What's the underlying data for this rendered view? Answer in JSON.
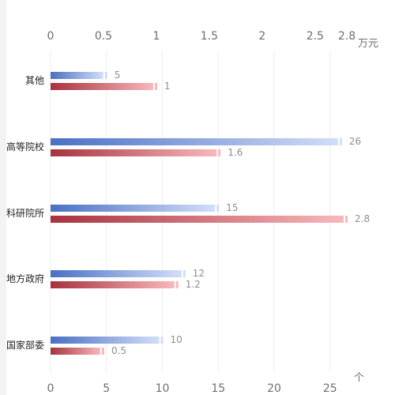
{
  "colors": {
    "count_start": "#4a6fc4",
    "count_end": "#d2def8",
    "amount_start": "#a8323e",
    "amount_end": "#f8b8bb",
    "grid": "#eeeeee",
    "background": "#f2f2f7"
  },
  "chart_data": {
    "type": "bar",
    "orientation": "horizontal",
    "categories": [
      "其他",
      "高等院校",
      "科研院所",
      "地方政府",
      "国家部委"
    ],
    "series": [
      {
        "axis": "bottom",
        "unit": "个",
        "values": [
          5,
          26,
          15,
          12,
          10
        ]
      },
      {
        "axis": "top",
        "unit": "万元",
        "values": [
          1,
          1.6,
          2.8,
          1.2,
          0.5
        ]
      }
    ],
    "top_axis": {
      "ticks": [
        0,
        0.5,
        1,
        1.5,
        2,
        2.5,
        2.8
      ],
      "tick_labels": [
        "0",
        "0.5",
        "1",
        "1.5",
        "2",
        "2.5",
        "2.8"
      ],
      "range": [
        0,
        2.8
      ],
      "unit_label": "万元"
    },
    "bottom_axis": {
      "ticks": [
        0,
        5,
        10,
        15,
        20,
        25
      ],
      "tick_labels": [
        "0",
        "5",
        "10",
        "15",
        "20",
        "25"
      ],
      "range": [
        0,
        26.5
      ],
      "unit_label": "个"
    },
    "grid": true,
    "legend": "none"
  }
}
